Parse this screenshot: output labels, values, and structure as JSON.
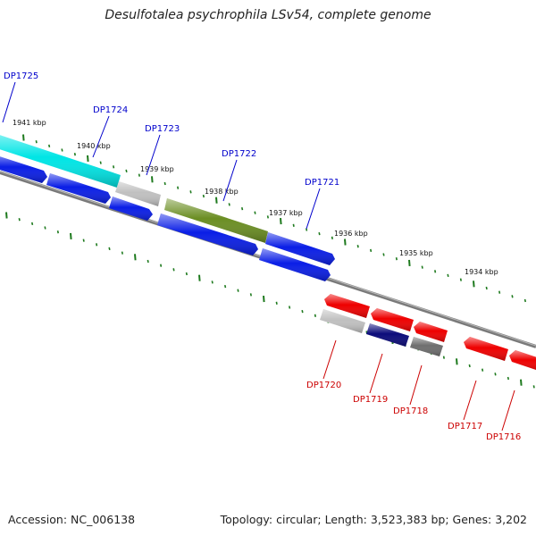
{
  "title": "Desulfotalea psychrophila LSv54, complete genome",
  "footer": {
    "accession": "Accession: NC_006138",
    "summary": "Topology: circular; Length: 3,523,383 bp; Genes: 3,202"
  },
  "colors": {
    "background": "#ffffff",
    "backbone": "#7a7a7a",
    "tick": "#1e7a1e",
    "forward_label": "#0000cc",
    "reverse_label": "#cc0000",
    "cyan_gene": "#00e5e5",
    "olive_gene": "#6b8e23",
    "blue_gene": "#0a1ee6",
    "red_gene": "#ee0000",
    "light_gray_gene": "#c0c0c0",
    "dark_gray_gene": "#6e6e6e",
    "navy_gene": "#0b0b7a"
  },
  "tick_labels": [
    "1941 kbp",
    "1940 kbp",
    "1939 kbp",
    "1938 kbp",
    "1937 kbp",
    "1936 kbp",
    "1935 kbp",
    "1934 kbp"
  ],
  "forward_labels": [
    "DP1725",
    "DP1724",
    "DP1723",
    "DP1722",
    "DP1721"
  ],
  "reverse_labels": [
    "DP1720",
    "DP1719",
    "DP1718",
    "DP1717",
    "DP1716"
  ]
}
